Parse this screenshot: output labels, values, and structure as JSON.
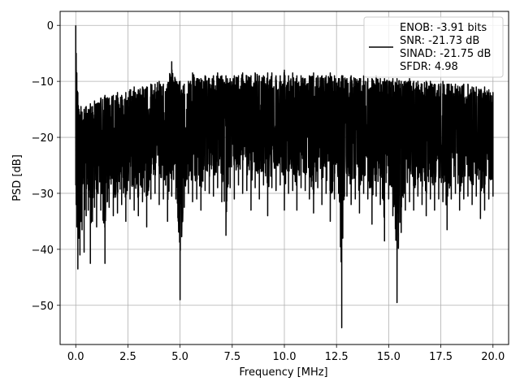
{
  "chart_data": {
    "type": "line",
    "xlabel": "Frequency [MHz]",
    "ylabel": "PSD [dB]",
    "xlim": [
      -0.75,
      20.75
    ],
    "ylim": [
      -57,
      2.5
    ],
    "xticks": [
      0.0,
      2.5,
      5.0,
      7.5,
      10.0,
      12.5,
      15.0,
      17.5,
      20.0
    ],
    "xtick_labels": [
      "0.0",
      "2.5",
      "5.0",
      "7.5",
      "10.0",
      "12.5",
      "15.0",
      "17.5",
      "20.0"
    ],
    "yticks": [
      0,
      -10,
      -20,
      -30,
      -40,
      -50
    ],
    "ytick_labels": [
      "0",
      "−10",
      "−20",
      "−30",
      "−40",
      "−50"
    ],
    "grid": true,
    "legend_position": "top-right",
    "series": [
      {
        "name": "ENOB: -3.91 bits\nSNR: -21.73 dB\nSINAD: -21.75 dB\nSFDR: 4.98",
        "legend_lines": [
          "ENOB: -3.91 bits",
          "SNR: -21.73 dB",
          "SINAD: -21.75 dB",
          "SFDR: 4.98"
        ],
        "color": "#000000",
        "x": [
          0.0,
          0.02,
          0.05,
          0.1,
          0.15,
          0.2,
          0.25,
          0.3,
          0.4,
          0.5,
          0.6,
          0.7,
          0.8,
          0.9,
          1.0,
          1.2,
          1.4,
          1.6,
          1.8,
          2.0,
          2.2,
          2.4,
          2.6,
          2.8,
          3.0,
          3.2,
          3.4,
          3.6,
          3.8,
          4.0,
          4.2,
          4.4,
          4.6,
          4.8,
          5.0,
          5.2,
          5.4,
          5.6,
          5.8,
          6.0,
          6.2,
          6.4,
          6.6,
          6.8,
          7.0,
          7.2,
          7.4,
          7.6,
          7.8,
          8.0,
          8.2,
          8.4,
          8.6,
          8.8,
          9.0,
          9.2,
          9.4,
          9.6,
          9.8,
          10.0,
          10.2,
          10.4,
          10.6,
          10.8,
          11.0,
          11.2,
          11.4,
          11.6,
          11.8,
          12.0,
          12.2,
          12.4,
          12.6,
          12.75,
          12.8,
          13.0,
          13.2,
          13.4,
          13.6,
          13.8,
          14.0,
          14.2,
          14.4,
          14.6,
          14.8,
          15.0,
          15.2,
          15.4,
          15.6,
          15.8,
          16.0,
          16.2,
          16.4,
          16.6,
          16.8,
          17.0,
          17.2,
          17.4,
          17.6,
          17.8,
          18.0,
          18.2,
          18.4,
          18.6,
          18.8,
          19.0,
          19.2,
          19.4,
          19.6,
          19.8,
          20.0
        ],
        "y_upper": [
          0.0,
          -5.0,
          -8.5,
          -12.0,
          -15.0,
          -16.0,
          -14.5,
          -15.5,
          -15.0,
          -14.5,
          -15.0,
          -14.0,
          -14.5,
          -13.5,
          -14.0,
          -13.0,
          -12.5,
          -13.0,
          -12.5,
          -12.0,
          -12.5,
          -12.0,
          -11.5,
          -11.0,
          -11.5,
          -11.0,
          -11.0,
          -10.5,
          -10.5,
          -10.0,
          -10.5,
          -10.5,
          -6.5,
          -10.0,
          -10.0,
          -10.5,
          -10.0,
          -8.5,
          -9.5,
          -9.5,
          -9.0,
          -9.5,
          -9.0,
          -8.5,
          -9.0,
          -9.0,
          -9.5,
          -9.0,
          -9.0,
          -8.5,
          -9.0,
          -9.0,
          -8.5,
          -9.0,
          -9.0,
          -8.5,
          -8.5,
          -9.0,
          -9.0,
          -8.0,
          -9.0,
          -8.5,
          -9.0,
          -9.0,
          -9.5,
          -9.0,
          -8.5,
          -9.0,
          -9.0,
          -9.0,
          -8.5,
          -9.0,
          -9.5,
          -9.0,
          -9.0,
          -9.5,
          -9.0,
          -9.5,
          -9.5,
          -9.0,
          -9.5,
          -9.5,
          -9.0,
          -9.5,
          -9.5,
          -10.0,
          -9.5,
          -9.5,
          -10.0,
          -10.0,
          -9.5,
          -10.0,
          -10.0,
          -10.5,
          -10.0,
          -10.0,
          -10.5,
          -10.5,
          -10.0,
          -10.5,
          -10.5,
          -10.5,
          -11.0,
          -10.5,
          -10.5,
          -11.0,
          -11.0,
          -11.5,
          -11.0,
          -11.5,
          -12.0
        ],
        "y_lower": [
          -28.5,
          -32.0,
          -36.0,
          -43.5,
          -38.0,
          -41.0,
          -35.0,
          -36.5,
          -40.5,
          -34.0,
          -33.0,
          -42.5,
          -35.0,
          -32.5,
          -36.0,
          -33.0,
          -42.5,
          -32.5,
          -34.0,
          -33.5,
          -32.0,
          -35.0,
          -31.0,
          -33.0,
          -34.0,
          -31.5,
          -36.0,
          -31.0,
          -30.0,
          -32.0,
          -31.0,
          -35.0,
          -30.5,
          -31.0,
          -49.0,
          -32.5,
          -30.0,
          -31.5,
          -31.0,
          -33.0,
          -29.5,
          -30.0,
          -30.5,
          -29.0,
          -31.5,
          -37.5,
          -29.0,
          -31.0,
          -28.5,
          -30.0,
          -29.5,
          -33.0,
          -29.0,
          -31.0,
          -28.5,
          -34.0,
          -29.0,
          -29.5,
          -28.5,
          -33.0,
          -30.0,
          -29.5,
          -33.0,
          -29.0,
          -29.5,
          -31.0,
          -33.5,
          -29.0,
          -32.0,
          -30.0,
          -35.0,
          -31.0,
          -30.0,
          -54.0,
          -38.0,
          -30.5,
          -32.0,
          -31.0,
          -33.5,
          -30.0,
          -31.0,
          -35.5,
          -30.5,
          -32.0,
          -38.5,
          -31.0,
          -34.0,
          -49.5,
          -37.0,
          -33.0,
          -31.5,
          -33.0,
          -30.5,
          -32.0,
          -34.0,
          -31.0,
          -33.0,
          -31.0,
          -31.5,
          -36.5,
          -31.0,
          -30.0,
          -33.0,
          -31.0,
          -30.5,
          -32.0,
          -30.5,
          -34.5,
          -33.0,
          -31.0,
          -30.5
        ]
      }
    ]
  }
}
